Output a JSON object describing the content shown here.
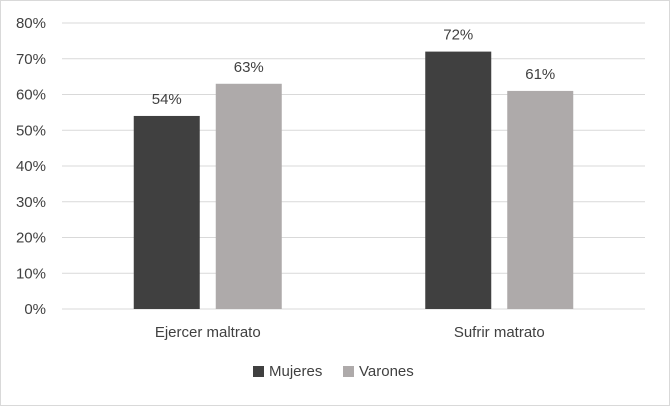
{
  "chart_data": {
    "type": "bar",
    "categories": [
      "Ejercer maltrato",
      "Sufrir matrato"
    ],
    "series": [
      {
        "name": "Mujeres",
        "values": [
          54,
          72
        ],
        "labels": [
          "54%",
          "72%"
        ],
        "color": "#404040"
      },
      {
        "name": "Varones",
        "values": [
          63,
          61
        ],
        "labels": [
          "63%",
          "61%"
        ],
        "color": "#aeaaaa"
      }
    ],
    "ylim": [
      0,
      80
    ],
    "yticks": [
      {
        "value": 0,
        "label": "0%"
      },
      {
        "value": 10,
        "label": "10%"
      },
      {
        "value": 20,
        "label": "20%"
      },
      {
        "value": 30,
        "label": "30%"
      },
      {
        "value": 40,
        "label": "40%"
      },
      {
        "value": 50,
        "label": "50%"
      },
      {
        "value": 60,
        "label": "60%"
      },
      {
        "value": 70,
        "label": "70%"
      },
      {
        "value": 80,
        "label": "80%"
      }
    ],
    "grid": true,
    "legend_position": "bottom",
    "title": "",
    "xlabel": "",
    "ylabel": ""
  }
}
